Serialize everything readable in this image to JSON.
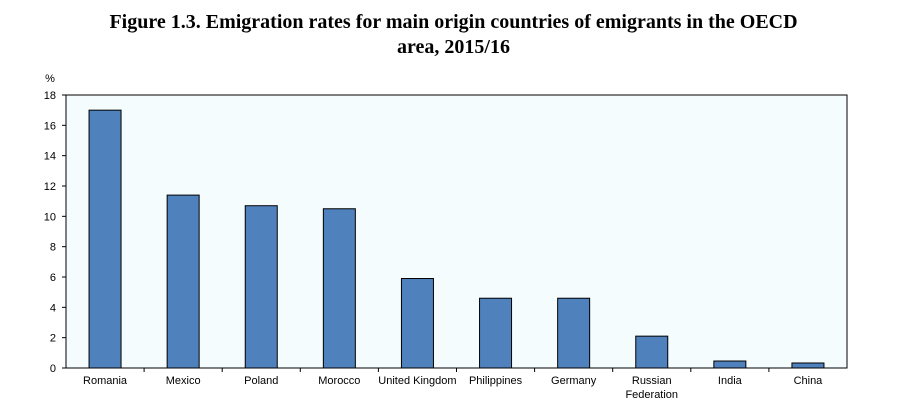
{
  "chart_data": {
    "type": "bar",
    "title_line1": "Figure 1.3. Emigration rates for main origin countries of emigrants in the OECD",
    "title_line2": "area, 2015/16",
    "ylabel": "%",
    "xlabel": "",
    "ylim": [
      0,
      18
    ],
    "yticks": [
      "0",
      "2",
      "4",
      "6",
      "8",
      "10",
      "12",
      "14",
      "16",
      "18"
    ],
    "categories": [
      "Romania",
      "Mexico",
      "Poland",
      "Morocco",
      "United Kingdom",
      "Philippines",
      "Germany",
      "Russian Federation",
      "India",
      "China"
    ],
    "category_lines": [
      [
        "Romania"
      ],
      [
        "Mexico"
      ],
      [
        "Poland"
      ],
      [
        "Morocco"
      ],
      [
        "United Kingdom"
      ],
      [
        "Philippines"
      ],
      [
        "Germany"
      ],
      [
        "Russian",
        "Federation"
      ],
      [
        "India"
      ],
      [
        "China"
      ]
    ],
    "values": [
      17.0,
      11.4,
      10.7,
      10.5,
      5.9,
      4.6,
      4.6,
      2.1,
      0.46,
      0.33
    ],
    "grid": false,
    "colors": {
      "bar": "#4f81bd",
      "plot_bg": "#f4fcfd"
    }
  }
}
